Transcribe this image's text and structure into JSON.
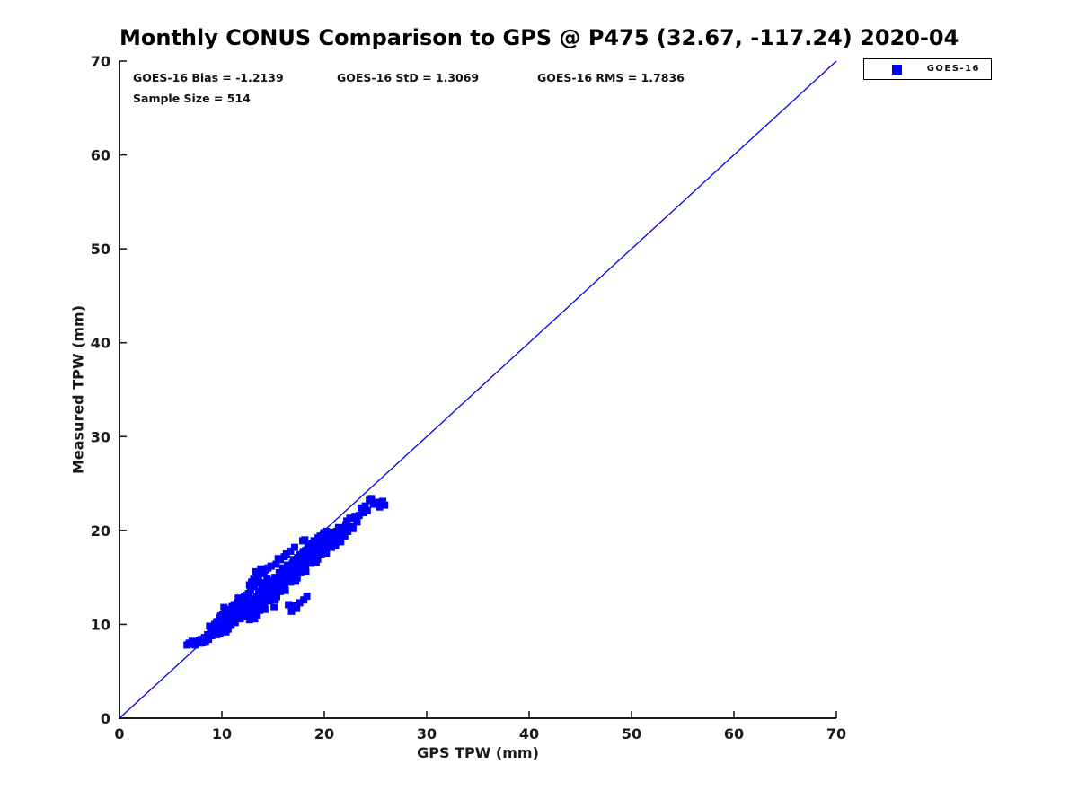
{
  "chart_data": {
    "type": "scatter",
    "title": "Monthly CONUS Comparison to GPS @ P475 (32.67, -117.24) 2020-04",
    "xlabel": "GPS TPW (mm)",
    "ylabel": "Measured TPW (mm)",
    "xlim": [
      0,
      70
    ],
    "ylim": [
      0,
      70
    ],
    "x_ticks": [
      0,
      10,
      20,
      30,
      40,
      50,
      60,
      70
    ],
    "y_ticks": [
      0,
      10,
      20,
      30,
      40,
      50,
      60,
      70
    ],
    "grid": false,
    "axis_color": "#1a1a1a",
    "annotations": {
      "bias_label": "GOES-16 Bias = -1.2139",
      "std_label": "GOES-16 StD = 1.3069",
      "rms_label": "GOES-16 RMS = 1.7836",
      "sample_label": "Sample Size = 514"
    },
    "stats": {
      "bias": -1.2139,
      "std": 1.3069,
      "rms": 1.7836,
      "sample_size": 514
    },
    "legend": {
      "position": "top-right",
      "entries": [
        {
          "label": "GOES-16",
          "marker": "square",
          "color": "#0000ff"
        }
      ]
    },
    "reference_line": {
      "from": [
        0,
        0
      ],
      "to": [
        70,
        70
      ],
      "color": "#0000e8"
    },
    "series": [
      {
        "name": "GOES-16",
        "marker": "square",
        "color": "#0000ff",
        "points": [
          [
            6.6,
            7.8
          ],
          [
            6.8,
            8.0
          ],
          [
            7.0,
            7.9
          ],
          [
            7.1,
            8.2
          ],
          [
            7.3,
            8.0
          ],
          [
            7.4,
            7.8
          ],
          [
            7.6,
            8.1
          ],
          [
            7.8,
            8.3
          ],
          [
            7.9,
            8.0
          ],
          [
            8.0,
            8.4
          ],
          [
            8.1,
            8.1
          ],
          [
            8.3,
            8.6
          ],
          [
            8.4,
            8.2
          ],
          [
            8.6,
            8.9
          ],
          [
            8.7,
            8.4
          ],
          [
            8.9,
            9.2
          ],
          [
            9.0,
            8.8
          ],
          [
            9.1,
            9.6
          ],
          [
            9.2,
            9.0
          ],
          [
            9.3,
            10.0
          ],
          [
            9.4,
            9.3
          ],
          [
            9.5,
            10.3
          ],
          [
            9.5,
            8.9
          ],
          [
            8.8,
            9.8
          ],
          [
            9.6,
            10.2
          ],
          [
            9.7,
            9.4
          ],
          [
            9.8,
            10.7
          ],
          [
            9.9,
            9.9
          ],
          [
            10.0,
            10.5
          ],
          [
            10.0,
            9.3
          ],
          [
            10.1,
            11.0
          ],
          [
            10.2,
            10.1
          ],
          [
            10.3,
            9.6
          ],
          [
            10.3,
            11.2
          ],
          [
            10.4,
            10.6
          ],
          [
            10.5,
            10.0
          ],
          [
            10.5,
            11.4
          ],
          [
            10.6,
            10.8
          ],
          [
            10.7,
            10.2
          ],
          [
            10.8,
            11.6
          ],
          [
            10.8,
            10.0
          ],
          [
            10.9,
            11.0
          ],
          [
            11.0,
            10.4
          ],
          [
            11.0,
            11.9
          ],
          [
            11.1,
            11.2
          ],
          [
            11.2,
            10.7
          ],
          [
            11.2,
            12.1
          ],
          [
            11.3,
            11.5
          ],
          [
            11.4,
            10.9
          ],
          [
            11.5,
            12.3
          ],
          [
            11.5,
            11.1
          ],
          [
            11.6,
            11.7
          ],
          [
            11.7,
            11.0
          ],
          [
            11.7,
            12.5
          ],
          [
            11.8,
            12.0
          ],
          [
            11.9,
            11.3
          ],
          [
            12.0,
            12.7
          ],
          [
            12.0,
            11.6
          ],
          [
            12.1,
            12.2
          ],
          [
            12.2,
            11.8
          ],
          [
            12.2,
            13.0
          ],
          [
            12.3,
            12.4
          ],
          [
            12.4,
            11.9
          ],
          [
            12.4,
            13.1
          ],
          [
            9.8,
            9.0
          ],
          [
            10.6,
            9.5
          ],
          [
            11.3,
            10.2
          ],
          [
            12.1,
            11.0
          ],
          [
            10.2,
            11.8
          ],
          [
            11.8,
            10.6
          ],
          [
            9.9,
            10.9
          ],
          [
            12.3,
            11.4
          ],
          [
            10.9,
            9.9
          ],
          [
            11.6,
            12.8
          ],
          [
            10.4,
            9.2
          ],
          [
            12.0,
            10.8
          ],
          [
            12.5,
            11.0
          ],
          [
            12.6,
            11.8
          ],
          [
            12.7,
            10.5
          ],
          [
            12.8,
            11.7
          ],
          [
            12.9,
            12.5
          ],
          [
            13.0,
            11.2
          ],
          [
            13.1,
            11.8
          ],
          [
            13.2,
            10.6
          ],
          [
            13.3,
            12.7
          ],
          [
            13.4,
            11.8
          ],
          [
            13.5,
            12.0
          ],
          [
            13.6,
            12.8
          ],
          [
            13.7,
            11.5
          ],
          [
            13.8,
            12.7
          ],
          [
            13.9,
            13.5
          ],
          [
            14.0,
            12.2
          ],
          [
            14.1,
            12.8
          ],
          [
            14.2,
            11.6
          ],
          [
            14.3,
            13.7
          ],
          [
            14.4,
            12.8
          ],
          [
            14.5,
            13.0
          ],
          [
            14.6,
            13.8
          ],
          [
            14.7,
            12.5
          ],
          [
            14.8,
            13.7
          ],
          [
            14.9,
            14.5
          ],
          [
            15.0,
            13.2
          ],
          [
            15.1,
            13.8
          ],
          [
            15.2,
            12.6
          ],
          [
            15.3,
            14.7
          ],
          [
            15.4,
            13.8
          ],
          [
            15.5,
            14.0
          ],
          [
            15.6,
            14.8
          ],
          [
            15.7,
            13.5
          ],
          [
            15.8,
            14.7
          ],
          [
            15.9,
            15.5
          ],
          [
            16.0,
            14.2
          ],
          [
            16.1,
            14.8
          ],
          [
            16.2,
            13.6
          ],
          [
            16.3,
            15.7
          ],
          [
            16.4,
            14.8
          ],
          [
            16.5,
            15.0
          ],
          [
            16.6,
            15.8
          ],
          [
            16.7,
            14.5
          ],
          [
            16.8,
            15.7
          ],
          [
            16.9,
            16.5
          ],
          [
            17.0,
            15.2
          ],
          [
            17.1,
            15.8
          ],
          [
            17.2,
            14.6
          ],
          [
            17.3,
            16.7
          ],
          [
            17.4,
            15.8
          ],
          [
            17.5,
            16.0
          ],
          [
            17.6,
            16.8
          ],
          [
            17.7,
            15.5
          ],
          [
            17.8,
            16.7
          ],
          [
            17.9,
            17.5
          ],
          [
            18.0,
            16.2
          ],
          [
            18.1,
            16.8
          ],
          [
            18.2,
            15.6
          ],
          [
            18.3,
            17.7
          ],
          [
            18.4,
            16.8
          ],
          [
            18.5,
            17.0
          ],
          [
            18.6,
            17.8
          ],
          [
            18.7,
            16.5
          ],
          [
            18.8,
            17.7
          ],
          [
            18.9,
            18.5
          ],
          [
            19.0,
            17.2
          ],
          [
            19.1,
            17.8
          ],
          [
            19.2,
            16.6
          ],
          [
            19.3,
            18.7
          ],
          [
            19.4,
            17.8
          ],
          [
            19.5,
            18.0
          ],
          [
            19.6,
            18.8
          ],
          [
            19.7,
            17.5
          ],
          [
            19.8,
            18.7
          ],
          [
            19.9,
            19.5
          ],
          [
            20.0,
            18.2
          ],
          [
            20.1,
            18.8
          ],
          [
            20.2,
            17.6
          ],
          [
            20.3,
            19.7
          ],
          [
            20.4,
            18.8
          ],
          [
            12.55,
            11.55
          ],
          [
            12.75,
            10.75
          ],
          [
            12.95,
            12.45
          ],
          [
            13.15,
            11.65
          ],
          [
            13.35,
            10.95
          ],
          [
            13.55,
            12.75
          ],
          [
            13.75,
            12.05
          ],
          [
            13.95,
            13.75
          ],
          [
            14.15,
            11.95
          ],
          [
            14.35,
            13.15
          ],
          [
            14.55,
            13.55
          ],
          [
            14.75,
            12.75
          ],
          [
            14.95,
            14.45
          ],
          [
            15.15,
            13.65
          ],
          [
            15.35,
            12.95
          ],
          [
            15.55,
            14.75
          ],
          [
            15.75,
            14.05
          ],
          [
            15.95,
            15.75
          ],
          [
            16.15,
            13.95
          ],
          [
            16.35,
            15.15
          ],
          [
            16.55,
            15.55
          ],
          [
            16.75,
            14.75
          ],
          [
            16.95,
            16.45
          ],
          [
            17.15,
            15.65
          ],
          [
            17.35,
            14.95
          ],
          [
            17.55,
            16.75
          ],
          [
            17.75,
            16.05
          ],
          [
            17.95,
            17.75
          ],
          [
            18.15,
            15.95
          ],
          [
            18.35,
            17.15
          ],
          [
            18.55,
            17.55
          ],
          [
            18.75,
            16.75
          ],
          [
            18.95,
            18.45
          ],
          [
            19.15,
            17.65
          ],
          [
            19.35,
            16.95
          ],
          [
            19.55,
            18.75
          ],
          [
            19.75,
            18.05
          ],
          [
            19.95,
            19.75
          ],
          [
            20.15,
            17.95
          ],
          [
            20.35,
            19.15
          ],
          [
            13.0,
            12.4
          ],
          [
            13.4,
            12.9
          ],
          [
            13.8,
            13.4
          ],
          [
            14.2,
            12.9
          ],
          [
            14.6,
            14.2
          ],
          [
            15.0,
            14.6
          ],
          [
            15.4,
            14.4
          ],
          [
            15.8,
            15.3
          ],
          [
            16.2,
            15.9
          ],
          [
            16.6,
            16.2
          ],
          [
            17.0,
            16.9
          ],
          [
            17.4,
            17.1
          ],
          [
            17.8,
            17.3
          ],
          [
            18.2,
            17.9
          ],
          [
            18.6,
            18.2
          ],
          [
            19.0,
            18.9
          ],
          [
            19.4,
            19.2
          ],
          [
            19.8,
            19.3
          ],
          [
            14.0,
            14.0
          ],
          [
            15.2,
            15.0
          ],
          [
            16.4,
            16.3
          ],
          [
            17.6,
            17.4
          ],
          [
            18.8,
            18.6
          ],
          [
            13.6,
            13.5
          ],
          [
            16.0,
            16.0
          ],
          [
            18.4,
            18.3
          ],
          [
            19.6,
            19.4
          ],
          [
            20.2,
            19.9
          ],
          [
            14.8,
            14.7
          ],
          [
            15.6,
            15.5
          ],
          [
            20.5,
            18.6
          ],
          [
            20.6,
            19.4
          ],
          [
            20.7,
            18.2
          ],
          [
            20.8,
            19.8
          ],
          [
            20.9,
            18.9
          ],
          [
            21.0,
            19.5
          ],
          [
            21.1,
            18.4
          ],
          [
            21.2,
            19.9
          ],
          [
            21.3,
            19.0
          ],
          [
            21.5,
            19.6
          ],
          [
            21.6,
            18.8
          ],
          [
            21.8,
            20.1
          ],
          [
            22.0,
            19.4
          ],
          [
            22.1,
            20.6
          ],
          [
            22.3,
            19.9
          ],
          [
            22.5,
            21.3
          ],
          [
            22.6,
            20.4
          ],
          [
            22.8,
            20.2
          ],
          [
            23.0,
            21.5
          ],
          [
            23.2,
            20.9
          ],
          [
            21.4,
            20.3
          ],
          [
            22.2,
            21.0
          ],
          [
            23.4,
            21.6
          ],
          [
            23.6,
            22.4
          ],
          [
            23.8,
            21.9
          ],
          [
            24.0,
            22.6
          ],
          [
            24.2,
            22.1
          ],
          [
            24.4,
            23.2
          ],
          [
            24.6,
            23.4
          ],
          [
            24.8,
            22.8
          ],
          [
            25.1,
            23.0
          ],
          [
            25.4,
            22.5
          ],
          [
            25.7,
            23.1
          ],
          [
            25.9,
            22.7
          ],
          [
            15.1,
            11.8
          ],
          [
            16.5,
            12.1
          ],
          [
            16.8,
            11.4
          ],
          [
            17.0,
            12.0
          ],
          [
            17.3,
            11.7
          ],
          [
            17.6,
            12.3
          ],
          [
            18.0,
            12.6
          ],
          [
            18.3,
            13.0
          ],
          [
            12.7,
            14.2
          ],
          [
            13.1,
            14.8
          ],
          [
            13.5,
            15.2
          ],
          [
            13.8,
            15.9
          ],
          [
            14.1,
            15.4
          ],
          [
            14.5,
            16.0
          ],
          [
            13.3,
            15.6
          ],
          [
            14.8,
            16.2
          ],
          [
            12.9,
            14.5
          ],
          [
            15.3,
            16.4
          ],
          [
            15.7,
            16.9
          ],
          [
            16.1,
            17.2
          ],
          [
            13.6,
            14.6
          ],
          [
            14.3,
            15.8
          ],
          [
            15.5,
            17.0
          ],
          [
            16.3,
            17.5
          ],
          [
            16.7,
            17.8
          ],
          [
            17.1,
            18.2
          ],
          [
            17.9,
            18.9
          ],
          [
            18.1,
            19.0
          ],
          [
            12.8,
            13.6
          ],
          [
            13.2,
            14.0
          ],
          [
            12.6,
            13.3
          ],
          [
            13.9,
            14.4
          ],
          [
            14.4,
            14.9
          ]
        ]
      }
    ]
  }
}
